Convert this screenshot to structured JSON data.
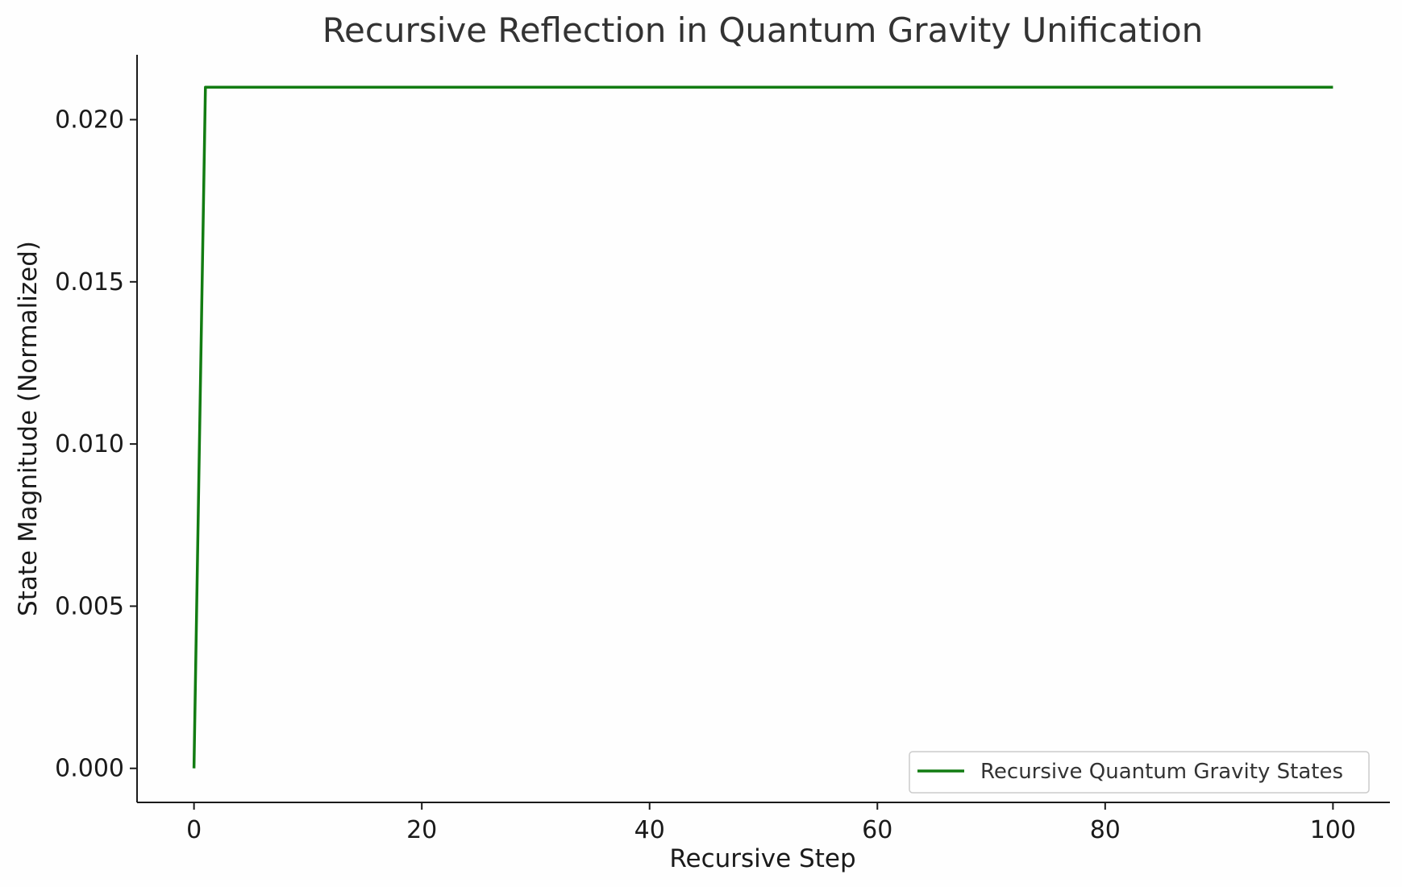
{
  "chart_data": {
    "type": "line",
    "title": "Recursive Reflection in Quantum Gravity Unification",
    "xlabel": "Recursive Step",
    "ylabel": "State Magnitude (Normalized)",
    "xlim": [
      -5,
      105
    ],
    "ylim": [
      -0.00105,
      0.022
    ],
    "x_ticks": [
      0,
      20,
      40,
      60,
      80,
      100
    ],
    "x_tick_labels": [
      "0",
      "20",
      "40",
      "60",
      "80",
      "100"
    ],
    "y_ticks": [
      0.0,
      0.005,
      0.01,
      0.015,
      0.02
    ],
    "y_tick_labels": [
      "0.000",
      "0.005",
      "0.010",
      "0.015",
      "0.020"
    ],
    "grid": false,
    "legend_position": "lower-right",
    "series": [
      {
        "name": "Recursive Quantum Gravity States",
        "color": "#127c12",
        "x": [
          0,
          1,
          100
        ],
        "y": [
          0.0,
          0.021,
          0.021
        ]
      }
    ]
  }
}
